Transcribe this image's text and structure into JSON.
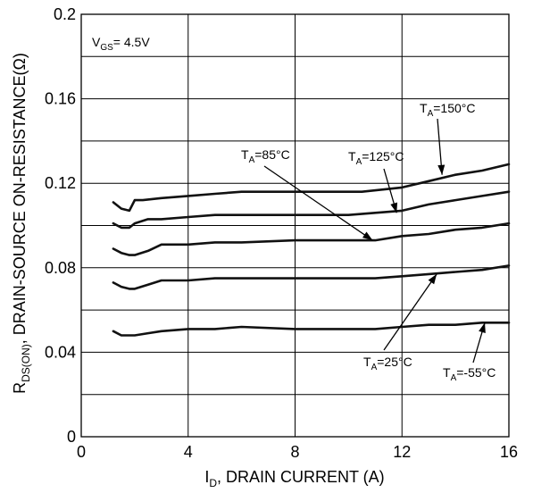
{
  "chart_data": {
    "type": "line",
    "xlabel": {
      "main": "I",
      "sub": "D",
      "rest": ", DRAIN CURRENT (A)"
    },
    "ylabel": {
      "main": "R",
      "sub": "DS(ON)",
      "rest": ", DRAIN-SOURCE ON-RESISTANCE(Ω)"
    },
    "xlim": [
      0,
      16
    ],
    "ylim": [
      0,
      0.2
    ],
    "x_ticks": [
      0,
      4,
      8,
      12,
      16
    ],
    "x_tick_labels": [
      "0",
      "4",
      "8",
      "12",
      "16"
    ],
    "y_ticks": [
      0,
      0.04,
      0.08,
      0.12,
      0.16,
      0.2
    ],
    "y_tick_labels": [
      "0",
      "0.04",
      "0.08",
      "0.12",
      "0.16",
      "0.2"
    ],
    "y_minor_grid": [
      0.02,
      0.06,
      0.1,
      0.14,
      0.18
    ],
    "grid": true,
    "condition": {
      "main": "V",
      "sub": "GS",
      "rest": "= 4.5V"
    },
    "series": [
      {
        "name": "TA=150°C",
        "label_main": "T",
        "label_sub": "A",
        "label_rest": "=150°C",
        "x": [
          1.2,
          1.5,
          1.8,
          2.0,
          2.3,
          3,
          4,
          5,
          6,
          8,
          10,
          10.5,
          12,
          13,
          14,
          15,
          16
        ],
        "y": [
          0.111,
          0.108,
          0.107,
          0.112,
          0.112,
          0.113,
          0.114,
          0.115,
          0.116,
          0.116,
          0.116,
          0.116,
          0.118,
          0.121,
          0.124,
          0.126,
          0.129
        ]
      },
      {
        "name": "TA=125°C",
        "label_main": "T",
        "label_sub": "A",
        "label_rest": "=125°C",
        "x": [
          1.2,
          1.5,
          1.8,
          2.0,
          2.5,
          3,
          4,
          5,
          6,
          8,
          10,
          11,
          12,
          13,
          14,
          15,
          16
        ],
        "y": [
          0.101,
          0.099,
          0.099,
          0.101,
          0.103,
          0.103,
          0.104,
          0.105,
          0.105,
          0.105,
          0.105,
          0.106,
          0.107,
          0.11,
          0.112,
          0.114,
          0.116
        ]
      },
      {
        "name": "TA=85°C",
        "label_main": "T",
        "label_sub": "A",
        "label_rest": "=85°C",
        "x": [
          1.2,
          1.5,
          1.8,
          2.0,
          2.5,
          3,
          4,
          5,
          6,
          8,
          10,
          11,
          12,
          13,
          14,
          15,
          16
        ],
        "y": [
          0.089,
          0.087,
          0.086,
          0.086,
          0.088,
          0.091,
          0.091,
          0.092,
          0.092,
          0.093,
          0.093,
          0.093,
          0.095,
          0.096,
          0.098,
          0.099,
          0.101
        ]
      },
      {
        "name": "TA=25°C",
        "label_main": "T",
        "label_sub": "A",
        "label_rest": "=25°C",
        "x": [
          1.2,
          1.5,
          1.8,
          2.0,
          2.5,
          3,
          4,
          5,
          6,
          8,
          10,
          11,
          12,
          13,
          14,
          15,
          16
        ],
        "y": [
          0.073,
          0.071,
          0.07,
          0.07,
          0.072,
          0.074,
          0.074,
          0.075,
          0.075,
          0.075,
          0.075,
          0.075,
          0.076,
          0.077,
          0.078,
          0.079,
          0.081
        ]
      },
      {
        "name": "TA=-55°C",
        "label_main": "T",
        "label_sub": "A",
        "label_rest": "=-55°C",
        "x": [
          1.2,
          1.5,
          1.8,
          2.0,
          2.5,
          3,
          4,
          5,
          6,
          8,
          10,
          11,
          12,
          13,
          14,
          15,
          16
        ],
        "y": [
          0.05,
          0.048,
          0.048,
          0.048,
          0.049,
          0.05,
          0.051,
          0.051,
          0.052,
          0.051,
          0.051,
          0.051,
          0.052,
          0.053,
          0.053,
          0.054,
          0.054
        ]
      }
    ]
  }
}
